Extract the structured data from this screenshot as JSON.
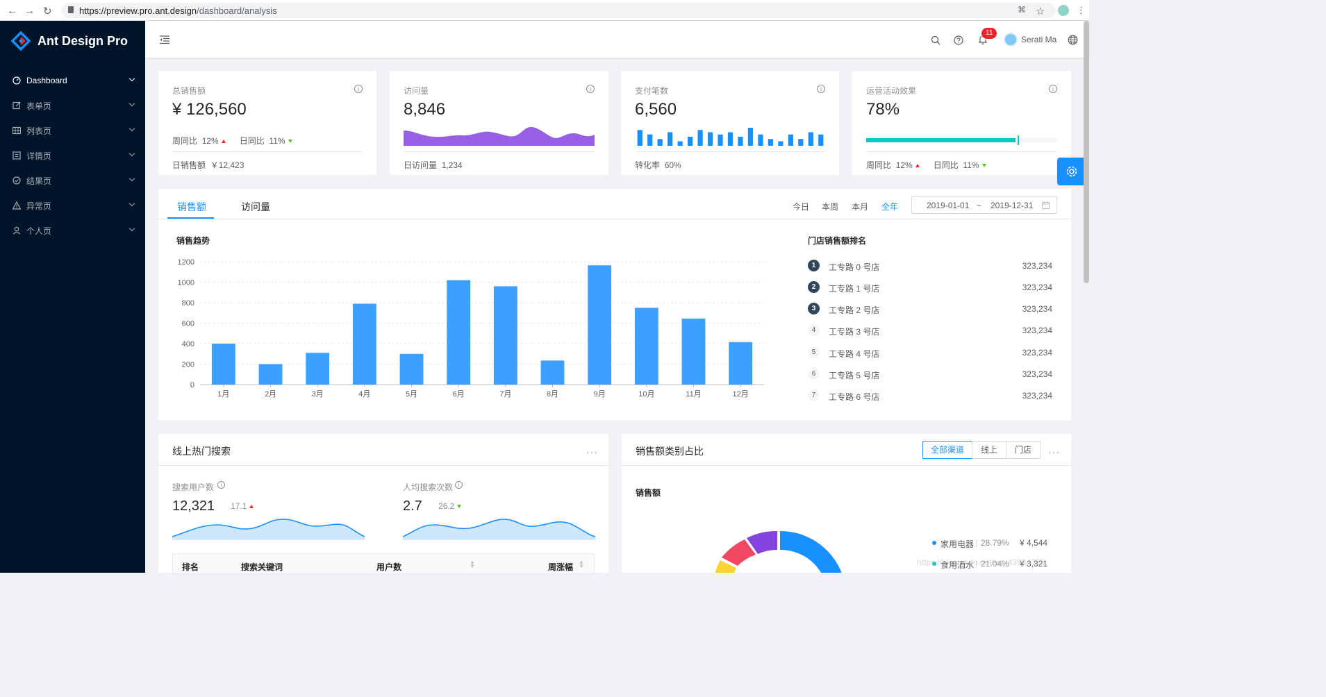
{
  "browser": {
    "url_host": "https://preview.pro.ant.design",
    "url_path": "/dashboard/analysis"
  },
  "app": {
    "title": "Ant Design Pro"
  },
  "sidebar": {
    "items": [
      {
        "label": "Dashboard",
        "icon": "dashboard-icon"
      },
      {
        "label": "表单页",
        "icon": "form-icon"
      },
      {
        "label": "列表页",
        "icon": "table-icon"
      },
      {
        "label": "详情页",
        "icon": "profile-icon"
      },
      {
        "label": "结果页",
        "icon": "check-circle-icon"
      },
      {
        "label": "异常页",
        "icon": "warning-icon"
      },
      {
        "label": "个人页",
        "icon": "user-icon"
      }
    ]
  },
  "header": {
    "notification_count": "11",
    "username": "Serati Ma"
  },
  "stats": [
    {
      "title": "总销售额",
      "value": "¥ 126,560",
      "wow_label": "周同比",
      "wow": "12%",
      "dod_label": "日同比",
      "dod": "11%",
      "footer_label": "日销售额",
      "footer_value": "￥12,423"
    },
    {
      "title": "访问量",
      "value": "8,846",
      "footer_label": "日访问量",
      "footer_value": "1,234"
    },
    {
      "title": "支付笔数",
      "value": "6,560",
      "footer_label": "转化率",
      "footer_value": "60%"
    },
    {
      "title": "运营活动效果",
      "value": "78%",
      "progress": 0.78,
      "wow_label": "周同比",
      "wow": "12%",
      "dod_label": "日同比",
      "dod": "11%"
    }
  ],
  "mini_bar_values": [
    7,
    5,
    3,
    6,
    2,
    4,
    7,
    6,
    5,
    6,
    4,
    8,
    5,
    3,
    2,
    5,
    3,
    6,
    5
  ],
  "sales": {
    "tabs": [
      "销售额",
      "访问量"
    ],
    "ranges": [
      "今日",
      "本周",
      "本月",
      "全年"
    ],
    "active_range": "全年",
    "date_start": "2019-01-01",
    "date_sep": "~",
    "date_end": "2019-12-31",
    "chart_title": "销售趋势",
    "rank_title": "门店销售额排名",
    "ranking": [
      {
        "rank": "1",
        "name": "工专路 0 号店",
        "value": "323,234"
      },
      {
        "rank": "2",
        "name": "工专路 1 号店",
        "value": "323,234"
      },
      {
        "rank": "3",
        "name": "工专路 2 号店",
        "value": "323,234"
      },
      {
        "rank": "4",
        "name": "工专路 3 号店",
        "value": "323,234"
      },
      {
        "rank": "5",
        "name": "工专路 4 号店",
        "value": "323,234"
      },
      {
        "rank": "6",
        "name": "工专路 5 号店",
        "value": "323,234"
      },
      {
        "rank": "7",
        "name": "工专路 6 号店",
        "value": "323,234"
      }
    ]
  },
  "chart_data": {
    "type": "bar",
    "title": "销售趋势",
    "categories": [
      "1月",
      "2月",
      "3月",
      "4月",
      "5月",
      "6月",
      "7月",
      "8月",
      "9月",
      "10月",
      "11月",
      "12月"
    ],
    "values": [
      400,
      200,
      310,
      790,
      300,
      1020,
      960,
      235,
      1165,
      750,
      645,
      415
    ],
    "yticks": [
      0,
      200,
      400,
      600,
      800,
      1000,
      1200
    ],
    "ylim": [
      0,
      1200
    ],
    "color": "#3ba0ff",
    "grid": true
  },
  "search": {
    "title": "线上热门搜索",
    "more": "···",
    "users_label": "搜索用户数",
    "users_value": "12,321",
    "users_change": "17.1",
    "avg_label": "人均搜索次数",
    "avg_value": "2.7",
    "avg_change": "26.2",
    "columns": [
      "排名",
      "搜索关键词",
      "用户数",
      "周涨幅"
    ]
  },
  "category": {
    "title": "销售额类别占比",
    "more": "···",
    "channels": [
      "全部渠道",
      "线上",
      "门店"
    ],
    "active_channel": "全部渠道",
    "sub_title": "销售额",
    "legend": [
      {
        "name": "家用电器",
        "percent": "28.79%",
        "value": "¥ 4,544",
        "color": "#1890ff"
      },
      {
        "name": "食用酒水",
        "percent": "21.04%",
        "value": "¥ 3,321",
        "color": "#13c2c2"
      }
    ],
    "watermark": "https://blog.csdn.net/qq_43964335"
  }
}
